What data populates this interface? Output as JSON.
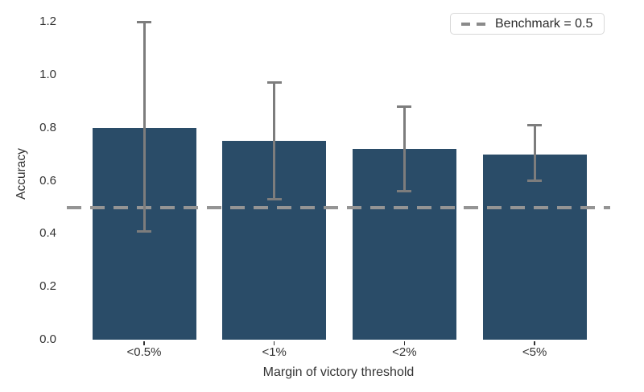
{
  "chart_data": {
    "type": "bar",
    "title": "",
    "xlabel": "Margin of victory threshold",
    "ylabel": "Accuracy",
    "categories": [
      "<0.5%",
      "<1%",
      "<2%",
      "<5%"
    ],
    "values": [
      0.8,
      0.75,
      0.72,
      0.7
    ],
    "error_low": [
      0.41,
      0.53,
      0.56,
      0.6
    ],
    "error_high": [
      1.2,
      0.97,
      0.88,
      0.81
    ],
    "benchmark_value": 0.5,
    "ytick_labels": [
      "0.0",
      "0.2",
      "0.4",
      "0.6",
      "0.8",
      "1.0",
      "1.2"
    ],
    "ytick_values": [
      0.0,
      0.2,
      0.4,
      0.6,
      0.8,
      1.0,
      1.2
    ],
    "ylim": [
      0,
      1.26
    ],
    "grid": false,
    "legend_position": "upper right",
    "legend": {
      "label": "Benchmark = 0.5",
      "style": "dashed"
    },
    "colors": {
      "bar": "#2a4c68",
      "error_bar": "#7d7d7d",
      "benchmark_line": "#949494",
      "text": "#333333",
      "legend_border": "#d8d8d8"
    }
  }
}
